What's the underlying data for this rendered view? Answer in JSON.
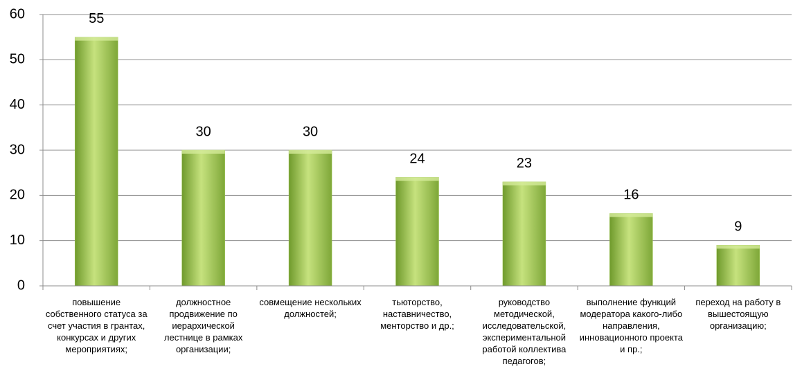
{
  "chart_data": {
    "type": "bar",
    "categories": [
      "повышение собственного статуса за счет участия в грантах, конкурсах и других мероприятиях;",
      "должностное продвижение по иерархической лестнице в рамках организации;",
      "совмещение нескольких должностей;",
      "тьюторство, наставничество, менторство и др.;",
      "руководство методической, исследовательской, экспериментальной работой коллектива педагогов;",
      "выполнение функций модератора какого-либо направления, инновационного проекта и пр.;",
      "переход на работу в вышестоящую организацию;"
    ],
    "values": [
      55,
      30,
      30,
      24,
      23,
      16,
      9
    ],
    "color": "#9bc44e",
    "ylim": [
      0,
      60
    ],
    "yticks": [
      0,
      10,
      20,
      30,
      40,
      50,
      60
    ],
    "grid": true
  }
}
